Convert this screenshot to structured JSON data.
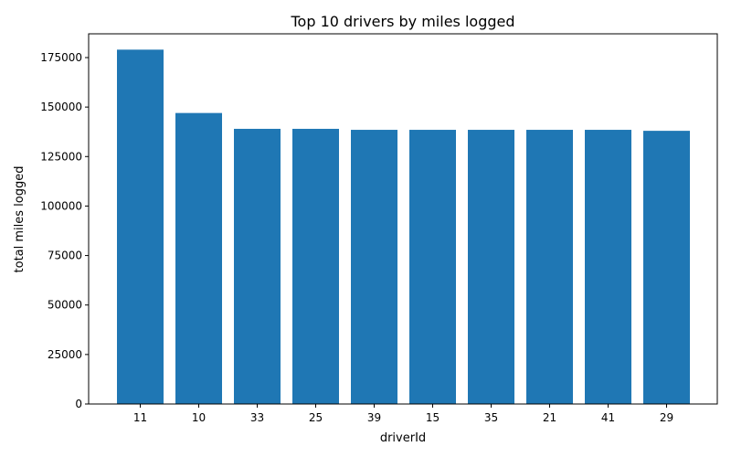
{
  "chart_data": {
    "type": "bar",
    "title": "Top 10 drivers by miles logged",
    "xlabel": "driverId",
    "ylabel": "total miles logged",
    "categories": [
      "11",
      "10",
      "33",
      "25",
      "39",
      "15",
      "35",
      "21",
      "41",
      "29"
    ],
    "values": [
      179000,
      147000,
      139000,
      139000,
      138500,
      138500,
      138500,
      138500,
      138500,
      138000
    ],
    "ylim": [
      0,
      187000
    ],
    "yticks": [
      0,
      25000,
      50000,
      75000,
      100000,
      125000,
      150000,
      175000
    ],
    "ytick_labels": [
      "0",
      "25000",
      "50000",
      "75000",
      "100000",
      "125000",
      "150000",
      "175000"
    ],
    "grid": false,
    "bar_color": "#1f77b4"
  }
}
